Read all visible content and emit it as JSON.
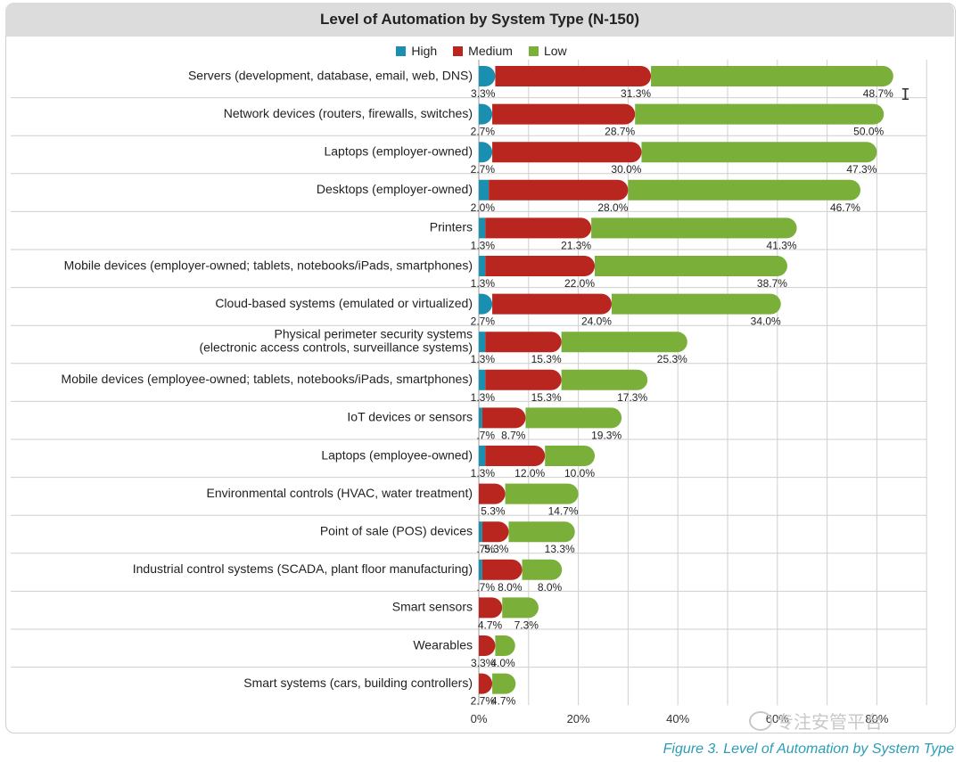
{
  "title": "Level of Automation by System Type (N-150)",
  "caption": "Figure 3. Level of Automation by System Type",
  "watermark": "专注安管平台",
  "colors": {
    "high": "#1a8fb0",
    "medium": "#b8261f",
    "low": "#7aaf3a",
    "grid": "#cfcfcf"
  },
  "chart_data": {
    "type": "bar",
    "orientation": "horizontal",
    "stacked": true,
    "title": "Level of Automation by System Type (N-150)",
    "legend_position": "top",
    "grid": true,
    "x_ticks": [
      "0%",
      "20%",
      "40%",
      "60%",
      "80%"
    ],
    "xlim": [
      0,
      90
    ],
    "categories": [
      "Servers (development, database, email, web, DNS)",
      "Network devices (routers, firewalls, switches)",
      "Laptops (employer-owned)",
      "Desktops (employer-owned)",
      "Printers",
      "Mobile devices (employer-owned; tablets, notebooks/iPads, smartphones)",
      "Cloud-based systems (emulated or virtualized)",
      "Physical perimeter security systems\n(electronic access controls, surveillance systems)",
      "Mobile devices (employee-owned; tablets, notebooks/iPads, smartphones)",
      "IoT devices or sensors",
      "Laptops (employee-owned)",
      "Environmental controls (HVAC, water treatment)",
      "Point of sale (POS) devices",
      "Industrial control systems (SCADA, plant floor manufacturing)",
      "Smart sensors",
      "Wearables",
      "Smart systems (cars, building controllers)"
    ],
    "series": [
      {
        "name": "High",
        "color": "#1a8fb0",
        "values": [
          3.3,
          2.7,
          2.7,
          2.0,
          1.3,
          1.3,
          2.7,
          1.3,
          1.3,
          0.7,
          1.3,
          0,
          0.7,
          0.7,
          0,
          0,
          0
        ],
        "labels": [
          "3.3%",
          "2.7%",
          "2.7%",
          "2.0%",
          "1.3%",
          "1.3%",
          "2.7%",
          "1.3%",
          "1.3%",
          ".7%",
          "1.3%",
          "",
          ".7%",
          ".7%",
          "",
          "",
          ""
        ]
      },
      {
        "name": "Medium",
        "color": "#b8261f",
        "values": [
          31.3,
          28.7,
          30.0,
          28.0,
          21.3,
          22.0,
          24.0,
          15.3,
          15.3,
          8.7,
          12.0,
          5.3,
          5.3,
          8.0,
          4.7,
          3.3,
          2.7
        ],
        "labels": [
          "31.3%",
          "28.7%",
          "30.0%",
          "28.0%",
          "21.3%",
          "22.0%",
          "24.0%",
          "15.3%",
          "15.3%",
          "8.7%",
          "12.0%",
          "5.3%",
          "5.3%",
          "8.0%",
          "4.7%",
          "3.3%",
          "2.7%"
        ]
      },
      {
        "name": "Low",
        "color": "#7aaf3a",
        "values": [
          48.7,
          50.0,
          47.3,
          46.7,
          41.3,
          38.7,
          34.0,
          25.3,
          17.3,
          19.3,
          10.0,
          14.7,
          13.3,
          8.0,
          7.3,
          4.0,
          4.7
        ],
        "labels": [
          "48.7%",
          "50.0%",
          "47.3%",
          "46.7%",
          "41.3%",
          "38.7%",
          "34.0%",
          "25.3%",
          "17.3%",
          "19.3%",
          "10.0%",
          "14.7%",
          "13.3%",
          "8.0%",
          "7.3%",
          "4.0%",
          "4.7%"
        ]
      }
    ]
  }
}
